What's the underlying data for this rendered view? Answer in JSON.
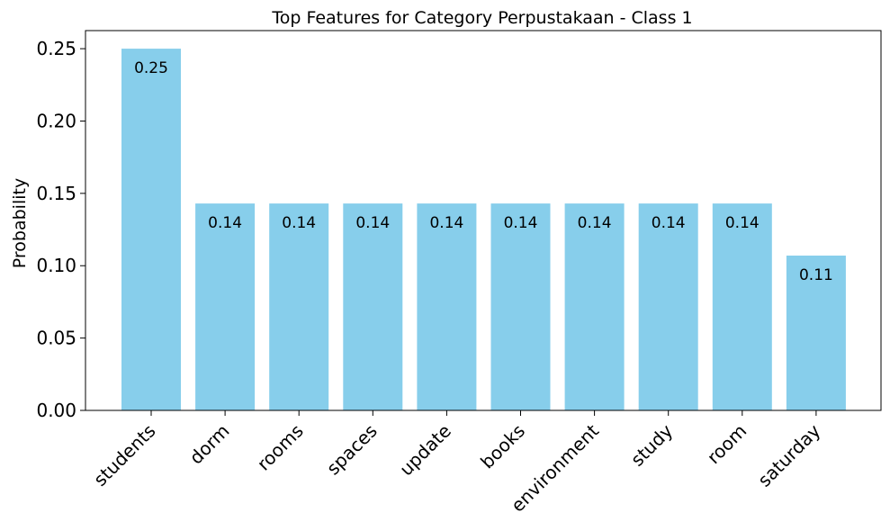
{
  "chart_data": {
    "type": "bar",
    "title": "Top Features for Category Perpustakaan - Class 1",
    "xlabel": "",
    "ylabel": "Probability",
    "categories": [
      "students",
      "dorm",
      "rooms",
      "spaces",
      "update",
      "books",
      "environment",
      "study",
      "room",
      "saturday"
    ],
    "values": [
      0.25,
      0.143,
      0.143,
      0.143,
      0.143,
      0.143,
      0.143,
      0.143,
      0.143,
      0.107
    ],
    "data_labels": [
      "0.25",
      "0.14",
      "0.14",
      "0.14",
      "0.14",
      "0.14",
      "0.14",
      "0.14",
      "0.14",
      "0.11"
    ],
    "ylim": [
      0,
      0.2625
    ],
    "yticks": [
      0.0,
      0.05,
      0.1,
      0.15,
      0.2,
      0.25
    ],
    "ytick_labels": [
      "0.00",
      "0.05",
      "0.10",
      "0.15",
      "0.20",
      "0.25"
    ],
    "bar_color": "#87CEEB",
    "grid": false,
    "legend": "none"
  }
}
